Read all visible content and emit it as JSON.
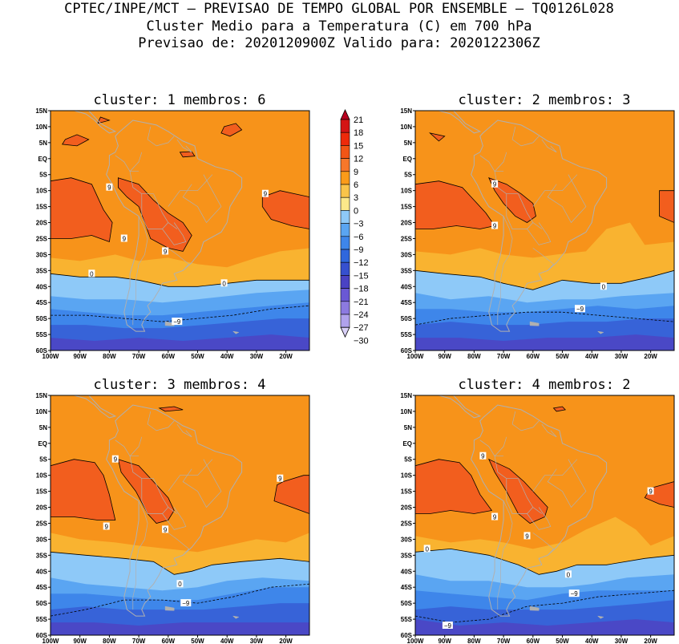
{
  "title": {
    "line1": "CPTEC/INPE/MCT – PREVISAO DE TEMPO GLOBAL POR ENSEMBLE – TQ0126L028",
    "line2": "Cluster Medio para a Temperatura (C) em 700 hPa",
    "line3": "Previsao de: 2020120900Z    Valido para: 2020122306Z"
  },
  "axes": {
    "lon_labels": [
      "100W",
      "90W",
      "80W",
      "70W",
      "60W",
      "50W",
      "40W",
      "30W",
      "20W"
    ],
    "lat_labels": [
      "15N",
      "10N",
      "5N",
      "EQ",
      "5S",
      "10S",
      "15S",
      "20S",
      "25S",
      "30S",
      "35S",
      "40S",
      "45S",
      "50S",
      "55S",
      "60S"
    ]
  },
  "colorbar": {
    "levels": [
      "21",
      "18",
      "15",
      "12",
      "9",
      "6",
      "3",
      "0",
      "−3",
      "−6",
      "−9",
      "−12",
      "−15",
      "−18",
      "−21",
      "−24",
      "−27",
      "−30"
    ],
    "colors": [
      "#b8001e",
      "#d41414",
      "#ee2a0a",
      "#f25515",
      "#f7772a",
      "#fb9b1a",
      "#f9c44a",
      "#fce88a",
      "#8ec9f8",
      "#5aa5f2",
      "#3e86ea",
      "#2f67dd",
      "#3650cf",
      "#4a42c4",
      "#6a58d4",
      "#8c7ae0",
      "#b0a2ec",
      "#d8d0f6"
    ]
  },
  "panels": [
    {
      "title": "cluster:  1   membros:  6",
      "contour_labels": [
        "9",
        "9",
        "9",
        "9",
        "0",
        "0",
        "−9"
      ]
    },
    {
      "title": "cluster:  2   membros:  3",
      "contour_labels": [
        "9",
        "9",
        "0",
        "−9"
      ]
    },
    {
      "title": "cluster:  3   membros:  4",
      "contour_labels": [
        "9",
        "9",
        "9",
        "9",
        "0",
        "−9"
      ]
    },
    {
      "title": "cluster:  4   membros:  2",
      "contour_labels": [
        "9",
        "9",
        "9",
        "9",
        "0",
        "0",
        "−9",
        "−9"
      ]
    }
  ],
  "colors": {
    "warm9to12": "#f25e1e",
    "warm6to9": "#f7931a",
    "warm3to6": "#f9b330",
    "warm0to3": "#fce080",
    "cool0tom3": "#8ec9f8",
    "cool3to6": "#5aa5f2",
    "cool6to9": "#3e86ea",
    "cool9to12": "#3763d8",
    "cool12to15": "#4a48c6",
    "land": "#b0b0b0"
  }
}
